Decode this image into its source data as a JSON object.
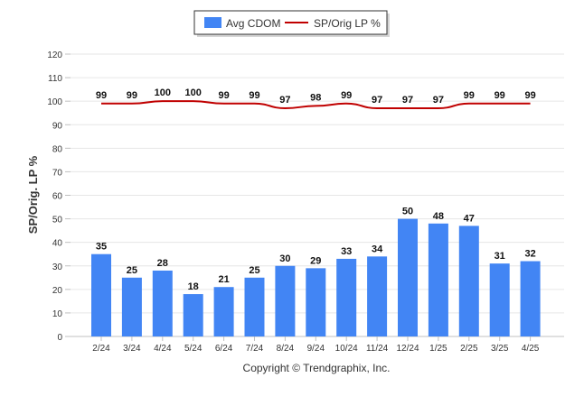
{
  "chart_data": {
    "type": "bar",
    "categories": [
      "2/24",
      "3/24",
      "4/24",
      "5/24",
      "6/24",
      "7/24",
      "8/24",
      "9/24",
      "10/24",
      "11/24",
      "12/24",
      "1/25",
      "2/25",
      "3/25",
      "4/25"
    ],
    "series": [
      {
        "name": "Avg CDOM",
        "type": "bar",
        "color": "#4285f4",
        "values": [
          35,
          25,
          28,
          18,
          21,
          25,
          30,
          29,
          33,
          34,
          50,
          48,
          47,
          31,
          32
        ]
      },
      {
        "name": "SP/Orig LP %",
        "type": "line",
        "color": "#c00000",
        "values": [
          99,
          99,
          100,
          100,
          99,
          99,
          97,
          98,
          99,
          97,
          97,
          97,
          99,
          99,
          99
        ]
      }
    ],
    "title": "",
    "xlabel": "",
    "ylabel": "SP/Orig. LP %",
    "ylim": [
      0,
      120
    ],
    "yticks": [
      0,
      10,
      20,
      30,
      40,
      50,
      60,
      70,
      80,
      90,
      100,
      110,
      120
    ],
    "grid": true,
    "legend_position": "top-center"
  },
  "legend": {
    "items": [
      {
        "label": "Avg CDOM",
        "color": "#4285f4",
        "kind": "bar"
      },
      {
        "label": "SP/Orig LP %",
        "color": "#c00000",
        "kind": "line"
      }
    ]
  },
  "footer": {
    "copyright": "Copyright © Trendgraphix, Inc."
  }
}
